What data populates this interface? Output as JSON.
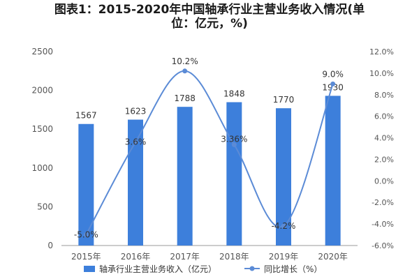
{
  "title": {
    "line1": "图表1：2015-2020年中国轴承行业主营业务收入情况(单",
    "line2": "位：亿元，%)"
  },
  "colors": {
    "bar": "#3d7fdb",
    "line": "#5b8bd6",
    "axis": "#999999",
    "grid": "#e6e6e6"
  },
  "chart_data": {
    "type": "bar",
    "categories": [
      "2015年",
      "2016年",
      "2017年",
      "2018年",
      "2019年",
      "2020年"
    ],
    "series": [
      {
        "name": "轴承行业主营业务收入（亿元）",
        "type": "bar",
        "axis": "left",
        "values": [
          1567,
          1623,
          1788,
          1848,
          1770,
          1930
        ],
        "labels": [
          "1567",
          "1623",
          "1788",
          "1848",
          "1770",
          "1930"
        ]
      },
      {
        "name": "同比增长（%）",
        "type": "line",
        "axis": "right",
        "values": [
          -5.0,
          3.6,
          10.2,
          3.36,
          -4.2,
          9.0
        ],
        "labels": [
          "-5.0%",
          "3.6%",
          "10.2%",
          "3.36%",
          "-4.2%",
          "9.0%"
        ]
      }
    ],
    "y_left": {
      "min": 0,
      "max": 2500,
      "ticks": [
        0,
        500,
        1000,
        1500,
        2000,
        2500
      ],
      "tick_labels": [
        "0",
        "500",
        "1000",
        "1500",
        "2000",
        "2500"
      ]
    },
    "y_right": {
      "min": -6,
      "max": 12,
      "ticks": [
        -6,
        -4,
        -2,
        0,
        2,
        4,
        6,
        8,
        10,
        12
      ],
      "tick_labels": [
        "-6.0%",
        "-4.0%",
        "-2.0%",
        "0.0%",
        "2.0%",
        "4.0%",
        "6.0%",
        "8.0%",
        "10.0%",
        "12.0%"
      ]
    },
    "legend_position": "bottom",
    "grid": false
  }
}
